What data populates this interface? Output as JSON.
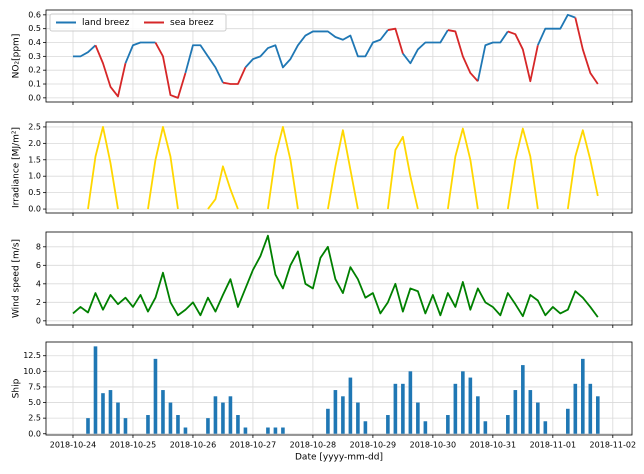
{
  "chart_data": [
    {
      "type": "line",
      "ylabel": "NO₂[ppm]",
      "grid": true,
      "legend": "upper left",
      "xlim": [
        -0.45,
        9.32
      ],
      "xticks": [
        0,
        1,
        2,
        3,
        4,
        5,
        6,
        7,
        8,
        9
      ],
      "ylim": [
        -0.03,
        0.635
      ],
      "yticks": [
        {
          "value": 0,
          "label": "0.0"
        },
        0.1,
        0.2,
        0.3,
        0.4,
        0.5,
        0.6
      ],
      "x": [
        0,
        0.125,
        0.25,
        0.375,
        0.5,
        0.625,
        0.75,
        0.875,
        1,
        1.125,
        1.25,
        1.375,
        1.5,
        1.625,
        1.75,
        1.875,
        2,
        2.125,
        2.25,
        2.375,
        2.5,
        2.625,
        2.75,
        2.875,
        3,
        3.125,
        3.25,
        3.375,
        3.5,
        3.625,
        3.75,
        3.875,
        4,
        4.125,
        4.25,
        4.375,
        4.5,
        4.625,
        4.75,
        4.875,
        5,
        5.125,
        5.25,
        5.375,
        5.5,
        5.625,
        5.75,
        5.875,
        6,
        6.125,
        6.25,
        6.375,
        6.5,
        6.625,
        6.75,
        6.875,
        7,
        7.125,
        7.25,
        7.375,
        7.5,
        7.625,
        7.75,
        7.875,
        8,
        8.125,
        8.25,
        8.375,
        8.5,
        8.625,
        8.75
      ],
      "series": [
        {
          "name": "land breez",
          "color": "#1f77b4",
          "values": [
            0.3,
            0.3,
            0.33,
            0.38,
            null,
            null,
            null,
            0.25,
            0.38,
            0.4,
            0.4,
            0.4,
            null,
            null,
            null,
            0.18,
            0.38,
            0.38,
            0.3,
            0.22,
            0.11,
            null,
            null,
            0.22,
            0.28,
            0.3,
            0.36,
            0.38,
            0.22,
            0.28,
            0.38,
            0.45,
            0.48,
            0.48,
            0.48,
            0.44,
            0.42,
            0.45,
            0.3,
            0.3,
            0.4,
            0.42,
            0.49,
            null,
            0.32,
            0.25,
            0.35,
            0.4,
            0.4,
            0.4,
            0.49,
            null,
            null,
            null,
            0.12,
            0.38,
            0.4,
            0.4,
            0.48,
            null,
            null,
            null,
            0.38,
            0.5,
            0.5,
            0.5,
            0.6,
            0.58,
            null,
            null,
            null
          ]
        },
        {
          "name": "sea breez",
          "color": "#d62728",
          "values": [
            null,
            null,
            null,
            0.38,
            0.25,
            0.08,
            0.01,
            0.25,
            null,
            null,
            null,
            0.4,
            0.3,
            0.02,
            0.0,
            0.18,
            null,
            null,
            null,
            null,
            0.11,
            0.1,
            0.1,
            0.22,
            null,
            null,
            null,
            null,
            null,
            null,
            null,
            null,
            null,
            null,
            null,
            null,
            null,
            null,
            null,
            null,
            null,
            null,
            0.49,
            0.5,
            0.32,
            null,
            null,
            null,
            null,
            null,
            0.49,
            0.48,
            0.3,
            0.18,
            0.12,
            null,
            null,
            null,
            0.48,
            0.46,
            0.35,
            0.12,
            0.38,
            null,
            null,
            null,
            null,
            0.58,
            0.35,
            0.18,
            0.1
          ]
        }
      ]
    },
    {
      "type": "line",
      "ylabel": "Irradiance [MJ/m²]",
      "grid": true,
      "color": "#ffd700",
      "xlim": [
        -0.45,
        9.32
      ],
      "xticks": [
        0,
        1,
        2,
        3,
        4,
        5,
        6,
        7,
        8,
        9
      ],
      "ylim": [
        -0.12,
        2.65
      ],
      "yticks": [
        {
          "value": 0,
          "label": "0.0"
        },
        0.5,
        {
          "value": 1,
          "label": "1.0"
        },
        1.5,
        {
          "value": 2,
          "label": "2.0"
        },
        2.5
      ],
      "x": [
        0,
        0.125,
        0.25,
        0.375,
        0.5,
        0.625,
        0.75,
        0.875,
        1,
        1.125,
        1.25,
        1.375,
        1.5,
        1.625,
        1.75,
        1.875,
        2,
        2.125,
        2.25,
        2.375,
        2.5,
        2.625,
        2.75,
        2.875,
        3,
        3.125,
        3.25,
        3.375,
        3.5,
        3.625,
        3.75,
        3.875,
        4,
        4.125,
        4.25,
        4.375,
        4.5,
        4.625,
        4.75,
        4.875,
        5,
        5.125,
        5.25,
        5.375,
        5.5,
        5.625,
        5.75,
        5.875,
        6,
        6.125,
        6.25,
        6.375,
        6.5,
        6.625,
        6.75,
        6.875,
        7,
        7.125,
        7.25,
        7.375,
        7.5,
        7.625,
        7.75,
        7.875,
        8,
        8.125,
        8.25,
        8.375,
        8.5,
        8.625,
        8.75
      ],
      "values": [
        null,
        null,
        0,
        1.6,
        2.5,
        1.4,
        0,
        null,
        null,
        null,
        0,
        1.5,
        2.5,
        1.6,
        0,
        null,
        null,
        null,
        0,
        0.3,
        1.3,
        0.6,
        0,
        null,
        null,
        null,
        0,
        1.6,
        2.5,
        1.5,
        0,
        null,
        null,
        null,
        0,
        1.3,
        2.4,
        1.2,
        0,
        null,
        null,
        null,
        0,
        1.8,
        2.2,
        1.0,
        0,
        null,
        null,
        null,
        0,
        1.6,
        2.45,
        1.5,
        0,
        null,
        null,
        null,
        0,
        1.5,
        2.45,
        1.6,
        0,
        null,
        null,
        null,
        0,
        1.6,
        2.4,
        1.5,
        0.4
      ]
    },
    {
      "type": "line",
      "ylabel": "Wind speed [m/s]",
      "grid": true,
      "color": "#008000",
      "xlim": [
        -0.45,
        9.32
      ],
      "xticks": [
        0,
        1,
        2,
        3,
        4,
        5,
        6,
        7,
        8,
        9
      ],
      "ylim": [
        -0.45,
        9.6
      ],
      "yticks": [
        0,
        2,
        4,
        6,
        8
      ],
      "x": [
        0,
        0.125,
        0.25,
        0.375,
        0.5,
        0.625,
        0.75,
        0.875,
        1,
        1.125,
        1.25,
        1.375,
        1.5,
        1.625,
        1.75,
        1.875,
        2,
        2.125,
        2.25,
        2.375,
        2.5,
        2.625,
        2.75,
        2.875,
        3,
        3.125,
        3.25,
        3.375,
        3.5,
        3.625,
        3.75,
        3.875,
        4,
        4.125,
        4.25,
        4.375,
        4.5,
        4.625,
        4.75,
        4.875,
        5,
        5.125,
        5.25,
        5.375,
        5.5,
        5.625,
        5.75,
        5.875,
        6,
        6.125,
        6.25,
        6.375,
        6.5,
        6.625,
        6.75,
        6.875,
        7,
        7.125,
        7.25,
        7.375,
        7.5,
        7.625,
        7.75,
        7.875,
        8,
        8.125,
        8.25,
        8.375,
        8.5,
        8.625,
        8.75
      ],
      "values": [
        0.8,
        1.5,
        0.9,
        3.0,
        1.2,
        2.8,
        1.8,
        2.5,
        1.5,
        2.8,
        1.0,
        2.5,
        5.2,
        2.0,
        0.6,
        1.2,
        2.0,
        0.6,
        2.5,
        1.0,
        2.8,
        4.5,
        1.5,
        3.5,
        5.5,
        7.0,
        9.2,
        5.0,
        3.5,
        6.0,
        7.5,
        4.0,
        3.5,
        6.8,
        8.0,
        4.5,
        3.0,
        5.8,
        4.5,
        2.5,
        3.0,
        0.8,
        2.0,
        4.0,
        1.0,
        3.5,
        3.2,
        0.8,
        2.8,
        0.6,
        3.0,
        1.5,
        4.2,
        1.2,
        3.5,
        2.0,
        1.5,
        0.6,
        3.0,
        1.8,
        0.5,
        2.8,
        2.2,
        0.6,
        1.5,
        0.8,
        1.2,
        3.2,
        2.5,
        1.5,
        0.4
      ]
    },
    {
      "type": "bar",
      "ylabel": "Ship",
      "xlabel": "Date [yyyy-mm-dd]",
      "grid": true,
      "color": "#1f77b4",
      "xlim": [
        -0.45,
        9.32
      ],
      "xticks": [
        {
          "value": 0,
          "label": "2018-10-24"
        },
        {
          "value": 1,
          "label": "2018-10-25"
        },
        {
          "value": 2,
          "label": "2018-10-26"
        },
        {
          "value": 3,
          "label": "2018-10-27"
        },
        {
          "value": 4,
          "label": "2018-10-28"
        },
        {
          "value": 5,
          "label": "2018-10-29"
        },
        {
          "value": 6,
          "label": "2018-10-30"
        },
        {
          "value": 7,
          "label": "2018-10-31"
        },
        {
          "value": 8,
          "label": "2018-11-01"
        },
        {
          "value": 9,
          "label": "2018-11-02"
        }
      ],
      "ylim": [
        -0.2,
        14.7
      ],
      "yticks": [
        {
          "value": 0,
          "label": "0.0"
        },
        2.5,
        {
          "value": 5,
          "label": "5.0"
        },
        7.5,
        {
          "value": 10,
          "label": "10.0"
        },
        12.5
      ],
      "x": [
        0,
        0.125,
        0.25,
        0.375,
        0.5,
        0.625,
        0.75,
        0.875,
        1,
        1.125,
        1.25,
        1.375,
        1.5,
        1.625,
        1.75,
        1.875,
        2,
        2.125,
        2.25,
        2.375,
        2.5,
        2.625,
        2.75,
        2.875,
        3,
        3.125,
        3.25,
        3.375,
        3.5,
        3.625,
        3.75,
        3.875,
        4,
        4.125,
        4.25,
        4.375,
        4.5,
        4.625,
        4.75,
        4.875,
        5,
        5.125,
        5.25,
        5.375,
        5.5,
        5.625,
        5.75,
        5.875,
        6,
        6.125,
        6.25,
        6.375,
        6.5,
        6.625,
        6.75,
        6.875,
        7,
        7.125,
        7.25,
        7.375,
        7.5,
        7.625,
        7.75,
        7.875,
        8,
        8.125,
        8.25,
        8.375,
        8.5,
        8.625,
        8.75
      ],
      "values": [
        0,
        0,
        2.5,
        14,
        6.5,
        7,
        5,
        2.5,
        0,
        0,
        3,
        12,
        7,
        5,
        3,
        1,
        0,
        0,
        2.5,
        6,
        5,
        6,
        3,
        1,
        0,
        0,
        1,
        1,
        1,
        0,
        0,
        0,
        0,
        0,
        4,
        7,
        6,
        9,
        5,
        2,
        0,
        0,
        3,
        8,
        8,
        10,
        5,
        2,
        0,
        0,
        3,
        8,
        10,
        9,
        6,
        2,
        0,
        0,
        3,
        7,
        11,
        7,
        5,
        2,
        0,
        0,
        4,
        8,
        12,
        8,
        6
      ]
    }
  ]
}
